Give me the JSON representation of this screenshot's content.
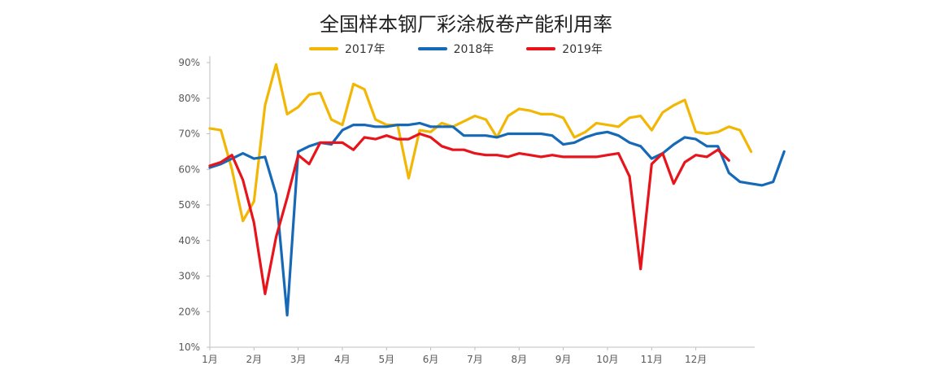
{
  "chart_data": {
    "type": "line",
    "title": "全国样本钢厂彩涂板卷产能利用率",
    "xlabel": "",
    "ylabel": "",
    "ylim": [
      10,
      90
    ],
    "y_ticks": [
      "10%",
      "20%",
      "30%",
      "40%",
      "50%",
      "60%",
      "70%",
      "80%",
      "90%"
    ],
    "x_ticks": [
      "1月",
      "2月",
      "3月",
      "4月",
      "5月",
      "6月",
      "7月",
      "8月",
      "9月",
      "10月",
      "11月",
      "12月"
    ],
    "legend_position": "top",
    "grid": false,
    "series": [
      {
        "name": "2017年",
        "color": "#F2B705",
        "points": [
          [
            1.0,
            71.5
          ],
          [
            1.25,
            71
          ],
          [
            1.5,
            60
          ],
          [
            1.75,
            45.5
          ],
          [
            2.0,
            51
          ],
          [
            2.25,
            78
          ],
          [
            2.5,
            89.5
          ],
          [
            2.75,
            75.5
          ],
          [
            3.0,
            77.5
          ],
          [
            3.25,
            81
          ],
          [
            3.5,
            81.5
          ],
          [
            3.75,
            74
          ],
          [
            4.0,
            72.5
          ],
          [
            4.25,
            84
          ],
          [
            4.5,
            82.5
          ],
          [
            4.75,
            74
          ],
          [
            5.0,
            72.5
          ],
          [
            5.25,
            72.5
          ],
          [
            5.5,
            57.5
          ],
          [
            5.75,
            71
          ],
          [
            6.0,
            70.5
          ],
          [
            6.25,
            73
          ],
          [
            6.5,
            72
          ],
          [
            6.75,
            73.5
          ],
          [
            7.0,
            75
          ],
          [
            7.25,
            74
          ],
          [
            7.5,
            69
          ],
          [
            7.75,
            75
          ],
          [
            8.0,
            77
          ],
          [
            8.25,
            76.5
          ],
          [
            8.5,
            75.5
          ],
          [
            8.75,
            75.5
          ],
          [
            9.0,
            74.5
          ],
          [
            9.25,
            69
          ],
          [
            9.5,
            70.5
          ],
          [
            9.75,
            73
          ],
          [
            10.0,
            72.5
          ],
          [
            10.25,
            72
          ],
          [
            10.5,
            74.5
          ],
          [
            10.75,
            75
          ],
          [
            11.0,
            71
          ],
          [
            11.25,
            76
          ],
          [
            11.5,
            78
          ],
          [
            11.75,
            79.5
          ],
          [
            12.0,
            70.5
          ],
          [
            12.25,
            70
          ],
          [
            12.5,
            70.5
          ],
          [
            12.75,
            72
          ],
          [
            13.0,
            71
          ],
          [
            13.25,
            65
          ]
        ]
      },
      {
        "name": "2018年",
        "color": "#1669B7",
        "points": [
          [
            1.0,
            60.5
          ],
          [
            1.25,
            61.5
          ],
          [
            1.5,
            63
          ],
          [
            1.75,
            64.5
          ],
          [
            2.0,
            63
          ],
          [
            2.25,
            63.5
          ],
          [
            2.5,
            53
          ],
          [
            2.75,
            19
          ],
          [
            3.0,
            65
          ],
          [
            3.25,
            66.5
          ],
          [
            3.5,
            67.5
          ],
          [
            3.75,
            67
          ],
          [
            4.0,
            71
          ],
          [
            4.25,
            72.5
          ],
          [
            4.5,
            72.5
          ],
          [
            4.75,
            72
          ],
          [
            5.0,
            72
          ],
          [
            5.25,
            72.5
          ],
          [
            5.5,
            72.5
          ],
          [
            5.75,
            73
          ],
          [
            6.0,
            72
          ],
          [
            6.25,
            72
          ],
          [
            6.5,
            72
          ],
          [
            6.75,
            69.5
          ],
          [
            7.0,
            69.5
          ],
          [
            7.25,
            69.5
          ],
          [
            7.5,
            69
          ],
          [
            7.75,
            70
          ],
          [
            8.0,
            70
          ],
          [
            8.25,
            70
          ],
          [
            8.5,
            70
          ],
          [
            8.75,
            69.5
          ],
          [
            9.0,
            67
          ],
          [
            9.25,
            67.5
          ],
          [
            9.5,
            69
          ],
          [
            9.75,
            70
          ],
          [
            10.0,
            70.5
          ],
          [
            10.25,
            69.5
          ],
          [
            10.5,
            67.5
          ],
          [
            10.75,
            66.5
          ],
          [
            11.0,
            63
          ],
          [
            11.25,
            64.5
          ],
          [
            11.5,
            67
          ],
          [
            11.75,
            69
          ],
          [
            12.0,
            68.5
          ],
          [
            12.25,
            66.5
          ],
          [
            12.5,
            66.5
          ],
          [
            12.75,
            59
          ],
          [
            13.0,
            56.5
          ],
          [
            13.25,
            56
          ],
          [
            13.5,
            55.5
          ],
          [
            13.75,
            56.5
          ],
          [
            14.0,
            65
          ]
        ]
      },
      {
        "name": "2019年",
        "color": "#E8141B",
        "points": [
          [
            1.0,
            61
          ],
          [
            1.25,
            62
          ],
          [
            1.5,
            64
          ],
          [
            1.75,
            57
          ],
          [
            2.0,
            45
          ],
          [
            2.25,
            25
          ],
          [
            2.5,
            41
          ],
          [
            2.75,
            52
          ],
          [
            3.0,
            64
          ],
          [
            3.25,
            61.5
          ],
          [
            3.5,
            67.5
          ],
          [
            3.75,
            67.5
          ],
          [
            4.0,
            67.5
          ],
          [
            4.25,
            65.5
          ],
          [
            4.5,
            69
          ],
          [
            4.75,
            68.5
          ],
          [
            5.0,
            69.5
          ],
          [
            5.25,
            68.5
          ],
          [
            5.5,
            68.5
          ],
          [
            5.75,
            70
          ],
          [
            6.0,
            69
          ],
          [
            6.25,
            66.5
          ],
          [
            6.5,
            65.5
          ],
          [
            6.75,
            65.5
          ],
          [
            7.0,
            64.5
          ],
          [
            7.25,
            64
          ],
          [
            7.5,
            64
          ],
          [
            7.75,
            63.5
          ],
          [
            8.0,
            64.5
          ],
          [
            8.25,
            64
          ],
          [
            8.5,
            63.5
          ],
          [
            8.75,
            64
          ],
          [
            9.0,
            63.5
          ],
          [
            9.25,
            63.5
          ],
          [
            9.5,
            63.5
          ],
          [
            9.75,
            63.5
          ],
          [
            10.0,
            64
          ],
          [
            10.25,
            64.5
          ],
          [
            10.5,
            58
          ],
          [
            10.75,
            32
          ],
          [
            11.0,
            61.5
          ],
          [
            11.25,
            64.5
          ],
          [
            11.5,
            56
          ],
          [
            11.75,
            62
          ],
          [
            12.0,
            64
          ],
          [
            12.25,
            63.5
          ],
          [
            12.5,
            65.5
          ],
          [
            12.75,
            62.5
          ]
        ]
      }
    ]
  }
}
